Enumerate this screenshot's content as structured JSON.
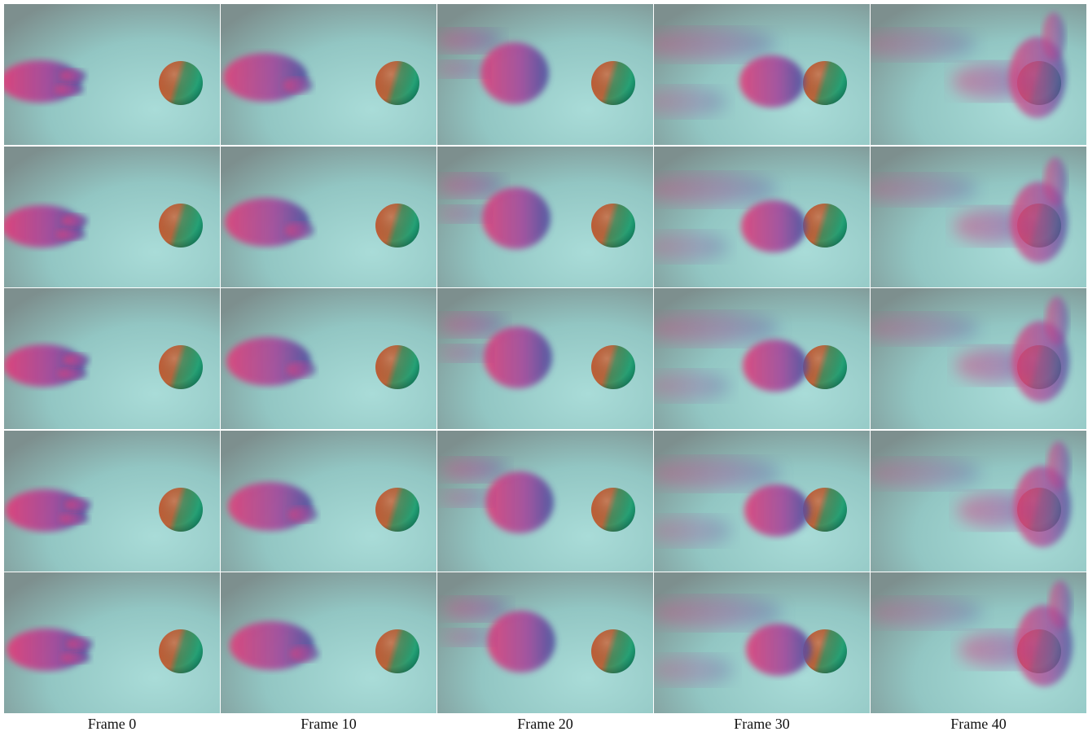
{
  "figure": {
    "columns": [
      {
        "label": "Frame 0"
      },
      {
        "label": "Frame 10"
      },
      {
        "label": "Frame 20"
      },
      {
        "label": "Frame 30"
      },
      {
        "label": "Frame 40"
      }
    ]
  }
}
